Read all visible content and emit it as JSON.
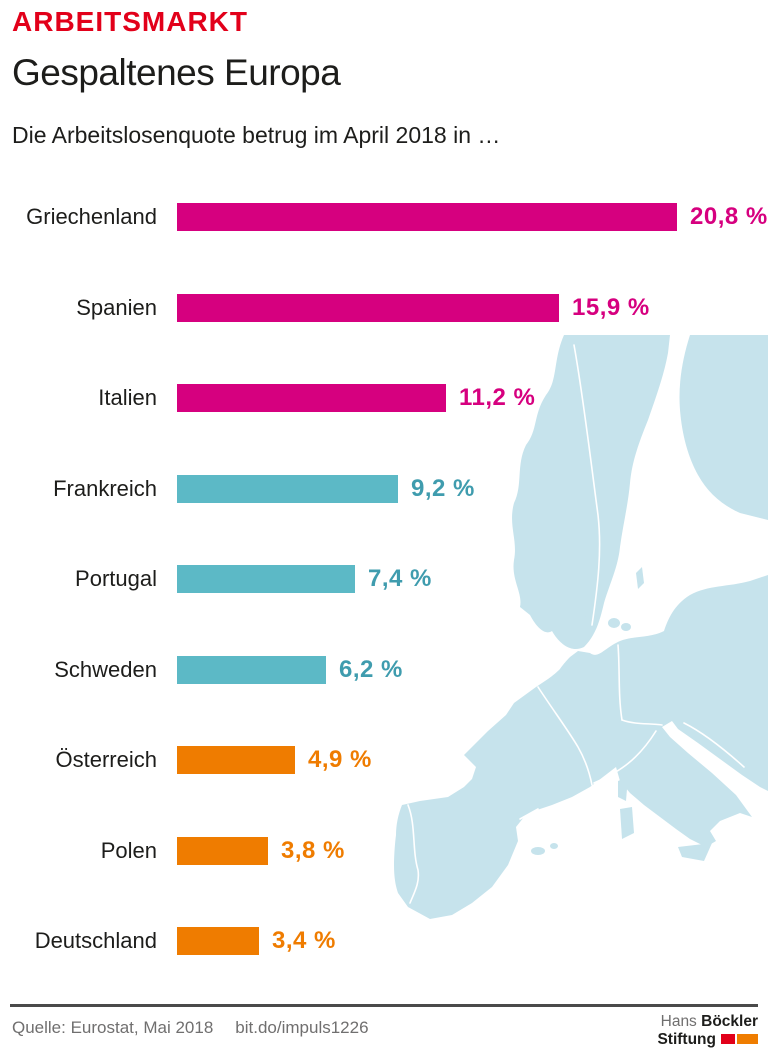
{
  "header": {
    "kicker": "ARBEITSMARKT",
    "title": "Gespaltenes Europa",
    "subtitle": "Die Arbeitslosenquote betrug im April 2018 in …"
  },
  "chart_data": {
    "type": "bar",
    "orientation": "horizontal",
    "title": "Die Arbeitslosenquote betrug im April 2018 in …",
    "unit": "%",
    "xlim": [
      0,
      21.5
    ],
    "grid": false,
    "legend": "none",
    "categories": [
      "Griechenland",
      "Spanien",
      "Italien",
      "Frankreich",
      "Portugal",
      "Schweden",
      "Österreich",
      "Polen",
      "Deutschland"
    ],
    "values": [
      20.8,
      15.9,
      11.2,
      9.2,
      7.4,
      6.2,
      4.9,
      3.8,
      3.4
    ],
    "value_labels": [
      "20,8 %",
      "15,9 %",
      "11,2 %",
      "9,2 %",
      "7,4 %",
      "6,2 %",
      "4,9 %",
      "3,8 %",
      "3,4 %"
    ],
    "bar_colors": [
      "#d6007f",
      "#d6007f",
      "#d6007f",
      "#5cb9c6",
      "#5cb9c6",
      "#5cb9c6",
      "#ef7c00",
      "#ef7c00",
      "#ef7c00"
    ],
    "value_label_colors": [
      "#d6007f",
      "#d6007f",
      "#d6007f",
      "#3f9cae",
      "#3f9cae",
      "#3f9cae",
      "#ef7c00",
      "#ef7c00",
      "#ef7c00"
    ]
  },
  "colors": {
    "kicker_red": "#e2001a",
    "label_black": "#1d1d1b",
    "map_fill": "#c6e3ec",
    "divider": "#4a4a4a",
    "footer_gray": "#706f6f",
    "logo_red": "#e2001a",
    "logo_orange": "#ef7d00"
  },
  "footer": {
    "source": "Quelle: Eurostat, Mai 2018",
    "link": "bit.do/impuls1226",
    "logo": {
      "line1_light": "Hans",
      "line1_bold": "Böckler",
      "line2_bold": "Stiftung"
    }
  }
}
